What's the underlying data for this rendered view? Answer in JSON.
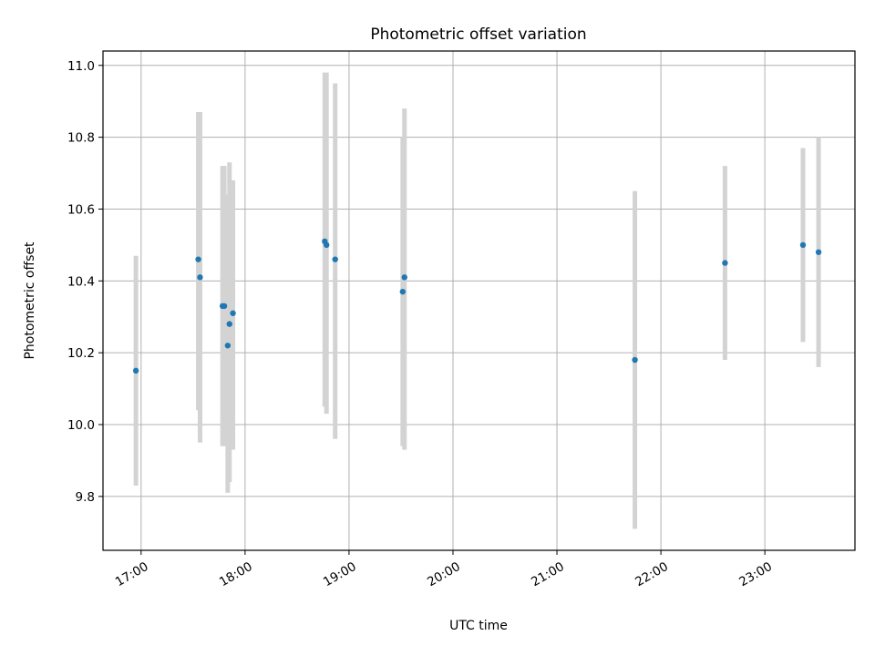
{
  "chart_data": {
    "type": "scatter",
    "title": "Photometric offset variation",
    "xlabel": "UTC time",
    "ylabel": "Photometric offset",
    "xlim": [
      "16:38",
      "23:52"
    ],
    "ylim": [
      9.65,
      11.04
    ],
    "x_ticks": [
      "17:00",
      "18:00",
      "19:00",
      "20:00",
      "21:00",
      "22:00",
      "23:00"
    ],
    "y_ticks": [
      9.8,
      10.0,
      10.2,
      10.4,
      10.6,
      10.8,
      11.0
    ],
    "y_tick_labels": [
      "9.8",
      "10.0",
      "10.2",
      "10.4",
      "10.6",
      "10.8",
      "11.0"
    ],
    "grid": true,
    "colors": {
      "point": "#1f77b4",
      "errorbar": "#d3d3d3"
    },
    "points": [
      {
        "x": "16:57",
        "y": 10.15,
        "yerr_low": 9.83,
        "yerr_high": 10.47
      },
      {
        "x": "17:33",
        "y": 10.46,
        "yerr_low": 10.04,
        "yerr_high": 10.87
      },
      {
        "x": "17:34",
        "y": 10.41,
        "yerr_low": 9.95,
        "yerr_high": 10.87
      },
      {
        "x": "17:47",
        "y": 10.33,
        "yerr_low": 9.94,
        "yerr_high": 10.72
      },
      {
        "x": "17:48",
        "y": 10.33,
        "yerr_low": 9.94,
        "yerr_high": 10.72
      },
      {
        "x": "17:50",
        "y": 10.22,
        "yerr_low": 9.81,
        "yerr_high": 10.64
      },
      {
        "x": "17:51",
        "y": 10.28,
        "yerr_low": 9.84,
        "yerr_high": 10.73
      },
      {
        "x": "17:53",
        "y": 10.31,
        "yerr_low": 9.93,
        "yerr_high": 10.68
      },
      {
        "x": "18:46",
        "y": 10.51,
        "yerr_low": 10.05,
        "yerr_high": 10.98
      },
      {
        "x": "18:47",
        "y": 10.5,
        "yerr_low": 10.03,
        "yerr_high": 10.98
      },
      {
        "x": "18:52",
        "y": 10.46,
        "yerr_low": 9.96,
        "yerr_high": 10.95
      },
      {
        "x": "19:31",
        "y": 10.37,
        "yerr_low": 9.94,
        "yerr_high": 10.8
      },
      {
        "x": "19:32",
        "y": 10.41,
        "yerr_low": 9.93,
        "yerr_high": 10.88
      },
      {
        "x": "21:45",
        "y": 10.18,
        "yerr_low": 9.71,
        "yerr_high": 10.65
      },
      {
        "x": "22:37",
        "y": 10.45,
        "yerr_low": 10.18,
        "yerr_high": 10.72
      },
      {
        "x": "23:22",
        "y": 10.5,
        "yerr_low": 10.23,
        "yerr_high": 10.77
      },
      {
        "x": "23:31",
        "y": 10.48,
        "yerr_low": 10.16,
        "yerr_high": 10.8
      }
    ]
  }
}
